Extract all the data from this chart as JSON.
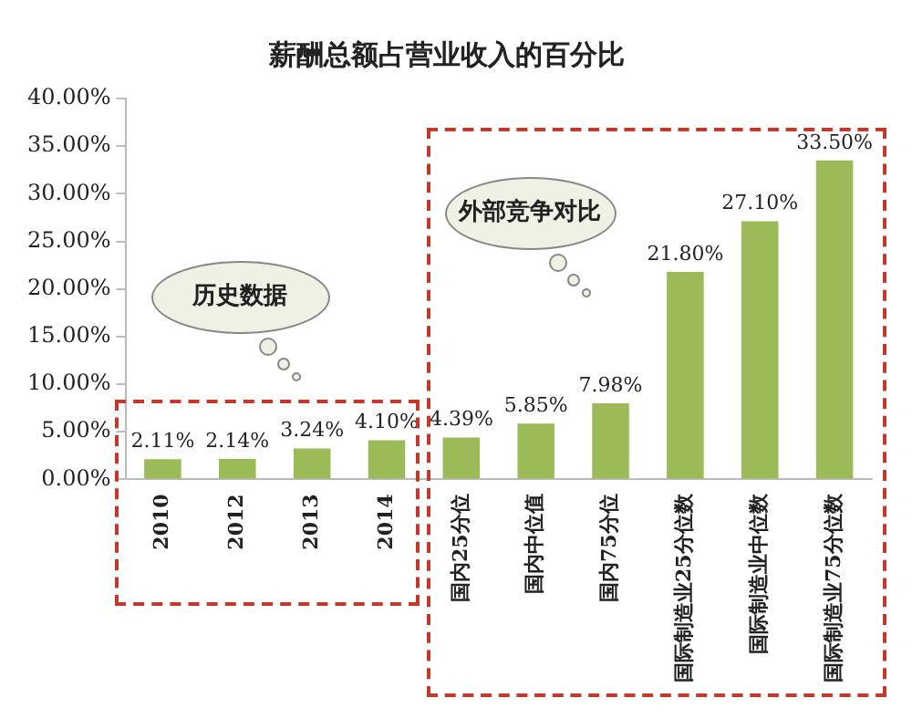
{
  "chart_data": {
    "type": "bar",
    "title": "薪酬总额占营业收入的百分比",
    "categories": [
      "2010",
      "2012",
      "2013",
      "2014",
      "国内25分位",
      "国内中位值",
      "国内75分位",
      "国际制造业25分位数",
      "国际制造业中位数",
      "国际制造业75分位数"
    ],
    "values": [
      2.11,
      2.14,
      3.24,
      4.1,
      4.39,
      5.85,
      7.98,
      21.8,
      27.1,
      33.5
    ],
    "value_labels": [
      "2.11%",
      "2.14%",
      "3.24%",
      "4.10%",
      "4.39%",
      "5.85%",
      "7.98%",
      "21.80%",
      "27.10%",
      "33.50%"
    ],
    "color": "#9bbb59",
    "ylim": [
      0,
      40
    ],
    "yticks": [
      {
        "value": 0,
        "label": "0.00%"
      },
      {
        "value": 5,
        "label": "5.00%"
      },
      {
        "value": 10,
        "label": "10.00%"
      },
      {
        "value": 15,
        "label": "15.00%"
      },
      {
        "value": 20,
        "label": "20.00%"
      },
      {
        "value": 25,
        "label": "25.00%"
      },
      {
        "value": 30,
        "label": "30.00%"
      },
      {
        "value": 35,
        "label": "35.00%"
      },
      {
        "value": 40,
        "label": "40.00%"
      }
    ],
    "annotations": [
      "历史数据",
      "外部竞争对比"
    ],
    "grid": false,
    "legend": false
  }
}
